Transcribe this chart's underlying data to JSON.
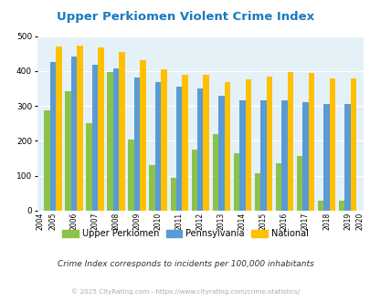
{
  "title": "Upper Perkiomen Violent Crime Index",
  "years": [
    2004,
    2005,
    2006,
    2007,
    2008,
    2009,
    2010,
    2011,
    2012,
    2013,
    2014,
    2015,
    2016,
    2017,
    2018,
    2019,
    2020
  ],
  "upper_perkiomen": [
    null,
    288,
    343,
    250,
    398,
    205,
    130,
    93,
    175,
    220,
    165,
    107,
    136,
    158,
    30,
    30,
    null
  ],
  "pennsylvania": [
    null,
    425,
    441,
    418,
    408,
    381,
    368,
    354,
    350,
    330,
    315,
    315,
    315,
    311,
    305,
    306,
    null
  ],
  "national": [
    null,
    469,
    474,
    467,
    455,
    432,
    405,
    389,
    389,
    368,
    376,
    383,
    398,
    394,
    380,
    379,
    null
  ],
  "color_upper": "#8bc34a",
  "color_pa": "#5b9bd5",
  "color_national": "#ffc000",
  "bg_color": "#e4f1f7",
  "ylabel_max": 500,
  "yticks": [
    0,
    100,
    200,
    300,
    400,
    500
  ],
  "subtitle": "Crime Index corresponds to incidents per 100,000 inhabitants",
  "footer": "© 2025 CityRating.com - https://www.cityrating.com/crime-statistics/",
  "title_color": "#1a7abf",
  "subtitle_color": "#333333",
  "footer_color": "#aaaaaa",
  "legend_labels": [
    "Upper Perkiomen",
    "Pennsylvania",
    "National"
  ]
}
